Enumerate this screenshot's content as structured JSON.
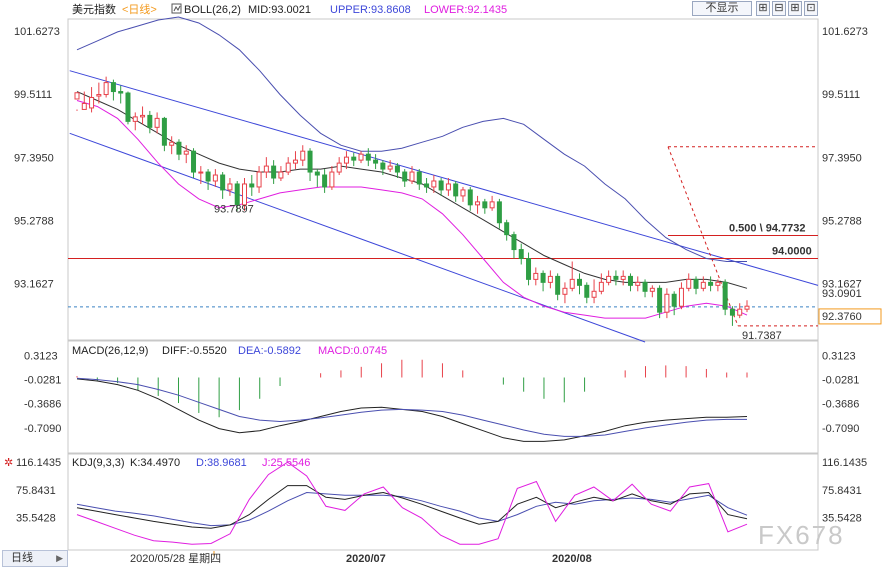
{
  "header": {
    "symbol": "美元指数",
    "period_tag": "<日线>",
    "indicator": "BOLL(26,2)",
    "mid": "MID:93.0021",
    "upper": "UPPER:93.8608",
    "lower": "LOWER:92.1435",
    "hide_button": "不显示",
    "period_button": "日线"
  },
  "watermark": "FX678",
  "colors": {
    "up": "#e8414a",
    "down": "#2f9e44",
    "upper_band": "#4a4fb0",
    "mid_band": "#333333",
    "lower_band": "#e01ee0",
    "channel": "#3d47d9",
    "level_red": "#d42020",
    "current": "#3b82c4",
    "label_orange": "#f39a1e",
    "label_blue": "#2b7fd6"
  },
  "chart_data": [
    {
      "type": "candlestick",
      "yticks": [
        "101.6273",
        "99.5111",
        "97.3950",
        "95.2788",
        "93.1627"
      ],
      "ytick_values": [
        101.6273,
        99.5111,
        97.395,
        95.2788,
        93.1627
      ],
      "ylim": [
        91.3,
        102.0
      ],
      "labels": {
        "channel_low": "93.7897",
        "low_mark": "91.7387",
        "level_94": "94.0000",
        "fib": "0.500 \\ 94.7732",
        "price_current": "92.3760",
        "price_last": "93.0901"
      },
      "levels": {
        "horizontal": 94.0,
        "current": 92.376,
        "fib": 94.7732,
        "fib_top": 97.75,
        "low": 91.7387
      },
      "candles": [
        [
          99.35,
          99.56,
          99.0,
          98.95
        ],
        [
          99.0,
          99.2,
          99.6,
          99.05
        ],
        [
          99.05,
          99.4,
          99.75,
          98.9
        ],
        [
          99.45,
          99.5,
          99.9,
          99.2
        ],
        [
          99.5,
          99.9,
          100.1,
          99.4
        ],
        [
          99.9,
          99.6,
          100.0,
          99.3
        ],
        [
          99.6,
          99.55,
          99.8,
          99.2
        ],
        [
          99.55,
          98.6,
          99.6,
          98.5
        ],
        [
          98.6,
          98.75,
          98.9,
          98.3
        ],
        [
          98.75,
          98.8,
          99.1,
          98.5
        ],
        [
          98.8,
          98.4,
          98.95,
          98.2
        ],
        [
          98.4,
          98.7,
          98.9,
          98.2
        ],
        [
          98.7,
          97.8,
          98.75,
          97.6
        ],
        [
          97.8,
          97.9,
          98.1,
          97.5
        ],
        [
          97.9,
          97.5,
          98.0,
          97.3
        ],
        [
          97.5,
          97.6,
          97.8,
          97.2
        ],
        [
          97.6,
          96.9,
          97.7,
          96.7
        ],
        [
          96.9,
          96.9,
          97.1,
          96.5
        ],
        [
          96.9,
          96.6,
          97.0,
          96.3
        ],
        [
          96.6,
          96.8,
          97.0,
          96.4
        ],
        [
          96.8,
          96.3,
          96.9,
          96.0
        ],
        [
          96.3,
          96.5,
          96.7,
          96.1
        ],
        [
          96.5,
          95.8,
          96.6,
          95.6
        ],
        [
          95.8,
          96.5,
          96.7,
          95.6
        ],
        [
          96.5,
          96.4,
          96.8,
          96.1
        ],
        [
          96.4,
          96.9,
          97.1,
          96.2
        ],
        [
          96.9,
          97.1,
          97.4,
          96.7
        ],
        [
          97.1,
          96.7,
          97.3,
          96.5
        ],
        [
          96.7,
          96.9,
          97.1,
          96.6
        ],
        [
          96.9,
          97.2,
          97.4,
          96.8
        ],
        [
          97.2,
          97.3,
          97.6,
          97.0
        ],
        [
          97.3,
          97.6,
          97.8,
          97.1
        ],
        [
          97.6,
          96.9,
          97.7,
          96.6
        ],
        [
          96.9,
          96.8,
          97.0,
          96.4
        ],
        [
          96.8,
          96.4,
          97.0,
          96.2
        ],
        [
          96.4,
          96.9,
          97.1,
          96.3
        ],
        [
          96.9,
          97.2,
          97.4,
          96.8
        ],
        [
          97.2,
          97.4,
          97.6,
          97.0
        ],
        [
          97.4,
          97.3,
          97.55,
          97.1
        ],
        [
          97.3,
          97.5,
          97.6,
          97.2
        ],
        [
          97.5,
          97.3,
          97.7,
          97.1
        ],
        [
          97.3,
          97.2,
          97.5,
          97.0
        ],
        [
          97.2,
          97.0,
          97.3,
          96.8
        ],
        [
          97.0,
          97.1,
          97.3,
          96.9
        ],
        [
          97.1,
          96.9,
          97.2,
          96.7
        ],
        [
          96.9,
          96.6,
          97.0,
          96.4
        ],
        [
          96.6,
          96.9,
          97.1,
          96.5
        ],
        [
          96.9,
          96.5,
          97.0,
          96.3
        ],
        [
          96.5,
          96.4,
          96.7,
          96.2
        ],
        [
          96.4,
          96.6,
          96.8,
          96.2
        ],
        [
          96.6,
          96.3,
          96.7,
          96.1
        ],
        [
          96.3,
          96.5,
          96.7,
          96.1
        ],
        [
          96.5,
          96.1,
          96.6,
          95.9
        ],
        [
          96.1,
          96.3,
          96.4,
          95.9
        ],
        [
          96.3,
          95.8,
          96.4,
          95.6
        ],
        [
          95.8,
          95.9,
          96.1,
          95.5
        ],
        [
          95.9,
          95.7,
          96.0,
          95.5
        ],
        [
          95.7,
          95.9,
          96.1,
          95.6
        ],
        [
          95.9,
          95.2,
          96.0,
          95.0
        ],
        [
          95.2,
          94.8,
          95.3,
          94.6
        ],
        [
          94.8,
          94.3,
          94.9,
          94.0
        ],
        [
          94.3,
          94.0,
          94.5,
          93.8
        ],
        [
          94.0,
          93.3,
          94.2,
          93.1
        ],
        [
          93.3,
          93.5,
          93.7,
          93.1
        ],
        [
          93.5,
          93.2,
          93.6,
          92.9
        ],
        [
          93.2,
          93.4,
          93.6,
          93.0
        ],
        [
          93.4,
          92.8,
          93.5,
          92.6
        ],
        [
          92.8,
          93.0,
          93.2,
          92.5
        ],
        [
          93.0,
          93.3,
          93.9,
          92.9
        ],
        [
          93.3,
          93.1,
          93.5,
          92.8
        ],
        [
          93.1,
          92.7,
          93.2,
          92.5
        ],
        [
          92.7,
          92.9,
          93.3,
          92.5
        ],
        [
          92.9,
          93.2,
          93.5,
          92.8
        ],
        [
          93.2,
          93.4,
          93.6,
          93.1
        ],
        [
          93.4,
          93.3,
          93.6,
          93.1
        ],
        [
          93.3,
          93.4,
          93.6,
          93.1
        ],
        [
          93.4,
          93.1,
          93.5,
          92.9
        ],
        [
          93.1,
          93.2,
          93.4,
          92.9
        ],
        [
          93.2,
          92.9,
          93.3,
          92.7
        ],
        [
          92.9,
          93.0,
          93.1,
          92.7
        ],
        [
          93.0,
          92.2,
          93.1,
          92.0
        ],
        [
          92.2,
          92.8,
          93.0,
          92.0
        ],
        [
          92.8,
          92.4,
          92.9,
          92.1
        ],
        [
          92.4,
          93.0,
          93.2,
          92.3
        ],
        [
          93.0,
          93.3,
          93.5,
          92.9
        ],
        [
          93.3,
          93.0,
          93.4,
          92.8
        ],
        [
          93.0,
          93.2,
          93.4,
          92.9
        ],
        [
          93.2,
          93.1,
          93.4,
          92.9
        ],
        [
          93.1,
          93.2,
          93.3,
          92.9
        ],
        [
          93.2,
          92.3,
          93.3,
          92.1
        ],
        [
          92.3,
          92.1,
          92.4,
          91.74
        ],
        [
          92.1,
          92.3,
          92.5,
          92.0
        ],
        [
          92.3,
          92.4,
          92.6,
          92.2
        ]
      ],
      "upper": [
        101.0,
        101.3,
        101.6,
        101.8,
        102.0,
        102.1,
        101.9,
        101.5,
        101.0,
        100.3,
        99.5,
        98.8,
        98.2,
        97.8,
        97.6,
        97.6,
        97.7,
        97.9,
        98.1,
        98.4,
        98.6,
        98.7,
        98.5,
        98.0,
        97.5,
        97.1,
        96.5,
        96.0,
        95.3,
        94.7,
        94.3,
        94.0,
        93.9,
        93.9
      ],
      "mid": [
        99.6,
        99.3,
        99.0,
        98.6,
        98.2,
        97.8,
        97.5,
        97.2,
        97.0,
        96.9,
        96.9,
        97.0,
        97.0,
        97.1,
        97.0,
        96.9,
        96.7,
        96.5,
        96.1,
        95.7,
        95.3,
        94.9,
        94.5,
        94.1,
        93.8,
        93.5,
        93.3,
        93.2,
        93.2,
        93.2,
        93.3,
        93.3,
        93.2,
        93.0
      ],
      "lower": [
        99.3,
        99.1,
        98.7,
        98.0,
        97.2,
        96.5,
        96.0,
        95.7,
        95.8,
        96.0,
        96.2,
        96.3,
        96.4,
        96.4,
        96.4,
        96.3,
        96.2,
        96.0,
        95.5,
        94.8,
        94.0,
        93.2,
        92.7,
        92.4,
        92.2,
        92.1,
        92.0,
        92.0,
        92.0,
        92.2,
        92.4,
        92.5,
        92.4,
        92.1
      ],
      "channel_top": [
        [
          -1,
          100.3
        ],
        [
          93,
          93.1
        ]
      ],
      "channel_bottom": [
        [
          -1,
          98.2
        ],
        [
          78,
          91.2
        ]
      ]
    },
    {
      "type": "bar",
      "title": "MACD(26,12,9)",
      "legend": {
        "diff": "DIFF:-0.5520",
        "dea": "DEA:-0.5892",
        "macd": "MACD:0.0745"
      },
      "yticks": [
        "0.3123",
        "-0.0281",
        "-0.3686",
        "-0.7090"
      ],
      "ytick_values": [
        0.3123,
        -0.0281,
        -0.3686,
        -0.709
      ],
      "ylim": [
        -1.05,
        0.5
      ],
      "diff": [
        -0.02,
        -0.05,
        -0.1,
        -0.18,
        -0.3,
        -0.45,
        -0.6,
        -0.72,
        -0.78,
        -0.75,
        -0.68,
        -0.62,
        -0.55,
        -0.48,
        -0.43,
        -0.42,
        -0.45,
        -0.48,
        -0.55,
        -0.65,
        -0.75,
        -0.85,
        -0.9,
        -0.9,
        -0.88,
        -0.82,
        -0.76,
        -0.68,
        -0.63,
        -0.6,
        -0.58,
        -0.56,
        -0.56,
        -0.55
      ],
      "dea": [
        -0.01,
        -0.03,
        -0.06,
        -0.1,
        -0.17,
        -0.25,
        -0.35,
        -0.45,
        -0.55,
        -0.6,
        -0.62,
        -0.6,
        -0.57,
        -0.53,
        -0.49,
        -0.46,
        -0.45,
        -0.46,
        -0.48,
        -0.53,
        -0.6,
        -0.67,
        -0.74,
        -0.8,
        -0.83,
        -0.83,
        -0.81,
        -0.76,
        -0.71,
        -0.67,
        -0.63,
        -0.6,
        -0.59,
        -0.59
      ],
      "macd": [
        0.02,
        -0.05,
        -0.08,
        -0.18,
        -0.26,
        -0.36,
        -0.5,
        -0.56,
        -0.46,
        -0.3,
        -0.12,
        0.0,
        0.06,
        0.1,
        0.15,
        0.2,
        0.25,
        0.25,
        0.2,
        0.1,
        0.0,
        -0.1,
        -0.2,
        -0.3,
        -0.35,
        -0.2,
        0.0,
        0.1,
        0.16,
        0.17,
        0.16,
        0.12,
        0.07,
        0.07
      ]
    },
    {
      "type": "line",
      "title": "KDJ(9,3,3)",
      "legend": {
        "k": "K:34.4970",
        "d": "D:38.9681",
        "j": "J:25.5546"
      },
      "yticks": [
        "116.1435",
        "75.8431",
        "35.5428"
      ],
      "ytick_values": [
        116.1435,
        75.8431,
        35.5428
      ],
      "ylim": [
        -10,
        125
      ],
      "k": [
        50,
        45,
        40,
        35,
        30,
        26,
        22,
        20,
        25,
        40,
        62,
        82,
        82,
        65,
        62,
        68,
        72,
        64,
        55,
        45,
        35,
        26,
        30,
        55,
        65,
        50,
        58,
        65,
        60,
        70,
        60,
        55,
        70,
        72,
        40,
        34
      ],
      "d": [
        55,
        50,
        45,
        42,
        38,
        33,
        28,
        24,
        25,
        32,
        45,
        60,
        72,
        70,
        68,
        68,
        68,
        66,
        60,
        52,
        45,
        35,
        30,
        40,
        52,
        58,
        55,
        60,
        62,
        64,
        62,
        58,
        63,
        68,
        50,
        39
      ],
      "j": [
        40,
        30,
        20,
        10,
        2,
        0,
        -3,
        -2,
        12,
        62,
        98,
        116,
        96,
        52,
        46,
        70,
        80,
        50,
        35,
        10,
        -3,
        -3,
        5,
        78,
        88,
        30,
        68,
        80,
        60,
        84,
        55,
        45,
        80,
        85,
        15,
        26
      ],
      "xlabels": {
        "date": "2020/05/28 星期四",
        "jul": "2020/07",
        "aug": "2020/08"
      }
    }
  ]
}
